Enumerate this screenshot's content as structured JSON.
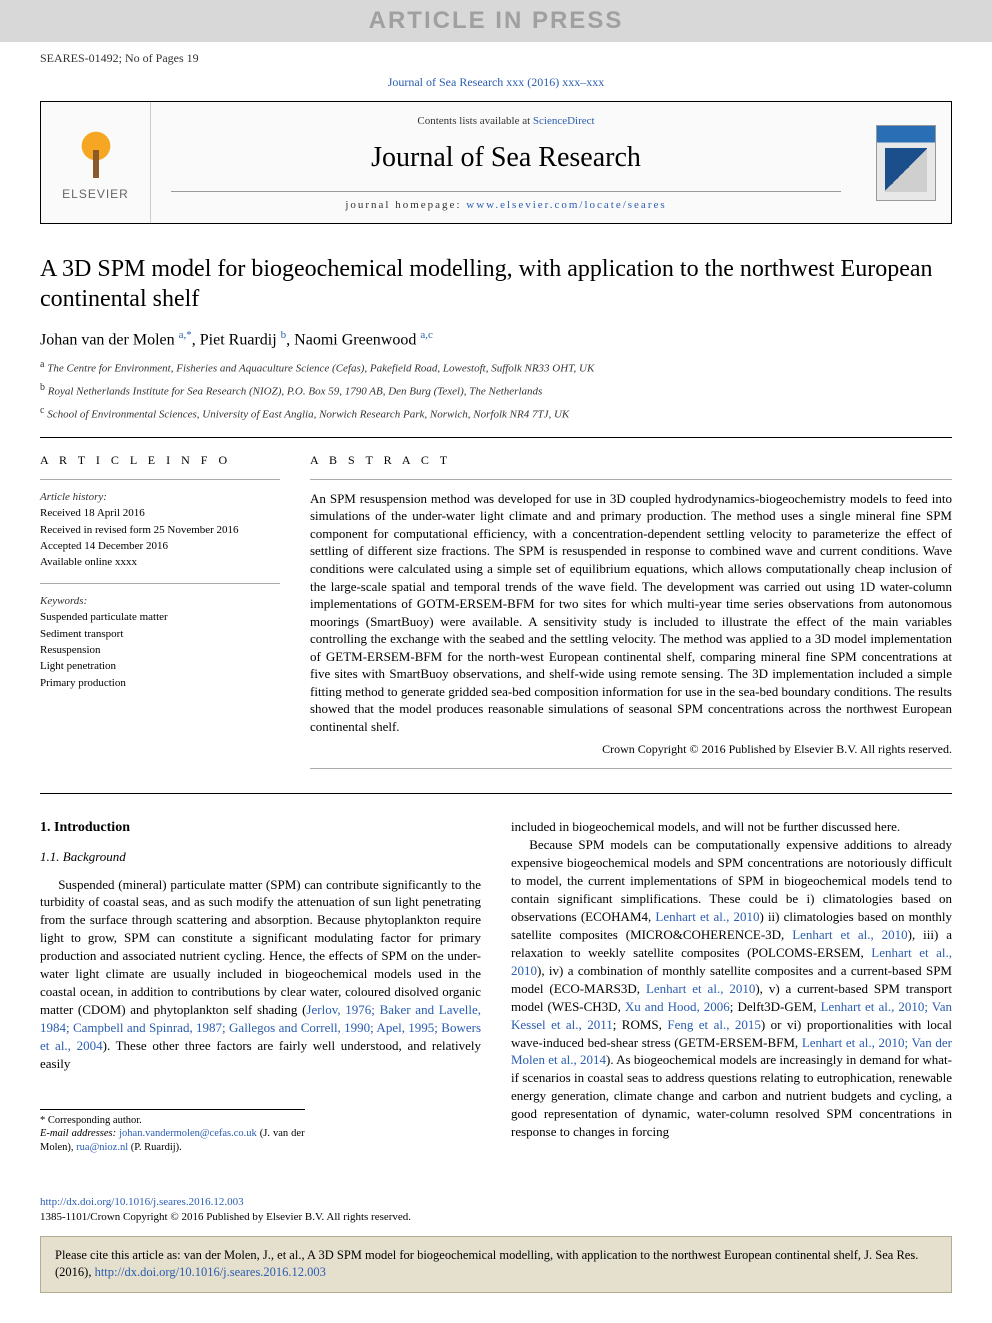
{
  "pressBanner": "ARTICLE IN PRESS",
  "articleRef": "SEARES-01492; No of Pages 19",
  "journalLine": "Journal of Sea Research xxx (2016) xxx–xxx",
  "headerBlock": {
    "elsevierBrand": "ELSEVIER",
    "contentsPrefix": "Contents lists available at ",
    "contentsLink": "ScienceDirect",
    "journalTitle": "Journal of Sea Research",
    "homepagePrefix": "journal homepage: ",
    "homepageUrl": "www.elsevier.com/locate/seares"
  },
  "title": "A 3D SPM model for biogeochemical modelling, with application to the northwest European continental shelf",
  "authors": [
    {
      "name": "Johan van der Molen ",
      "affil": "a,*"
    },
    {
      "name": ", Piet Ruardij ",
      "affil": "b"
    },
    {
      "name": ", Naomi Greenwood ",
      "affil": "a,c"
    }
  ],
  "affiliations": [
    {
      "sup": "a",
      "text": " The Centre for Environment, Fisheries and Aquaculture Science (Cefas), Pakefield Road, Lowestoft, Suffolk NR33 OHT, UK"
    },
    {
      "sup": "b",
      "text": " Royal Netherlands Institute for Sea Research (NIOZ), P.O. Box 59, 1790 AB, Den Burg (Texel), The Netherlands"
    },
    {
      "sup": "c",
      "text": " School of Environmental Sciences, University of East Anglia, Norwich Research Park, Norwich, Norfolk NR4 7TJ, UK"
    }
  ],
  "articleInfo": {
    "heading": "A R T I C L E   I N F O",
    "historyLabel": "Article history:",
    "history": [
      "Received 18 April 2016",
      "Received in revised form 25 November 2016",
      "Accepted 14 December 2016",
      "Available online xxxx"
    ],
    "keywordsLabel": "Keywords:",
    "keywords": [
      "Suspended particulate matter",
      "Sediment transport",
      "Resuspension",
      "Light penetration",
      "Primary production"
    ]
  },
  "abstract": {
    "heading": "A B S T R A C T",
    "text": "An SPM resuspension method was developed for use in 3D coupled hydrodynamics-biogeochemistry models to feed into simulations of the under-water light climate and and primary production. The method uses a single mineral fine SPM component for computational efficiency, with a concentration-dependent settling velocity to parameterize the effect of settling of different size fractions. The SPM is resuspended in response to combined wave and current conditions. Wave conditions were calculated using a simple set of equilibrium equations, which allows computationally cheap inclusion of the large-scale spatial and temporal trends of the wave field. The development was carried out using 1D water-column implementations of GOTM-ERSEM-BFM for two sites for which multi-year time series observations from autonomous moorings (SmartBuoy) were available. A sensitivity study is included to illustrate the effect of the main variables controlling the exchange with the seabed and the settling velocity. The method was applied to a 3D model implementation of GETM-ERSEM-BFM for the north-west European continental shelf, comparing mineral fine SPM concentrations at five sites with SmartBuoy observations, and shelf-wide using remote sensing. The 3D implementation included a simple fitting method to generate gridded sea-bed composition information for use in the sea-bed boundary conditions. The results showed that the model produces reasonable simulations of seasonal SPM concentrations across the northwest European continental shelf.",
    "copyright": "Crown Copyright © 2016 Published by Elsevier B.V. All rights reserved."
  },
  "section1": {
    "heading": "1. Introduction",
    "sub": "1.1. Background",
    "leftPara": {
      "leadText": "Suspended (mineral) particulate matter (SPM) can contribute significantly to the turbidity of coastal seas, and as such modify the attenuation of sun light penetrating from the surface through scattering and absorption. Because phytoplankton require light to grow, SPM can constitute a significant modulating factor for primary production and associated nutrient cycling. Hence, the effects of SPM on the under-water light climate are usually included in biogeochemical models used in the coastal ocean, in addition to contributions by clear water, coloured disolved organic matter (CDOM) and phytoplankton self shading (",
      "ref1": "Jerlov, 1976; Baker and Lavelle, 1984; Campbell and Spinrad, 1987; Gallegos and Correll, 1990; Apel, 1995; Bowers et al., 2004",
      "tailText": "). These other three factors are fairly well understood, and relatively easily"
    },
    "rightParaTop": "included in biogeochemical models, and will not be further discussed here.",
    "rightPara": {
      "p1": "Because SPM models can be computationally expensive additions to already expensive biogeochemical models and SPM concentrations are notoriously difficult to model, the current implementations of SPM in biogeochemical models tend to contain significant simplifications. These could be i) climatologies based on observations (ECOHAM4, ",
      "r1": "Lenhart et al., 2010",
      "p2": ") ii) climatologies based on monthly satellite composites (MICRO&COHERENCE-3D, ",
      "r2": "Lenhart et al., 2010",
      "p3": "), iii) a relaxation to weekly satellite composites (POLCOMS-ERSEM, ",
      "r3": "Lenhart et al., 2010",
      "p4": "), iv) a combination of monthly satellite composites and a current-based SPM model (ECO-MARS3D, ",
      "r4": "Lenhart et al., 2010",
      "p5": "), v) a current-based SPM transport model (WES-CH3D, ",
      "r5": "Xu and Hood, 2006",
      "p6": "; Delft3D-GEM, ",
      "r6": "Lenhart et al., 2010; Van Kessel et al., 2011",
      "p7": "; ROMS, ",
      "r7": "Feng et al., 2015",
      "p8": ") or vi) proportionalities with local wave-induced bed-shear stress (GETM-ERSEM-BFM, ",
      "r8": "Lenhart et al., 2010; Van der Molen et al., 2014",
      "p9": "). As biogeochemical models are increasingly in demand for what-if scenarios in coastal seas to address questions relating to eutrophication, renewable energy generation, climate change and carbon and nutrient budgets and cycling, a good representation of dynamic, water-column resolved SPM concentrations in response to changes in forcing"
    }
  },
  "footnotes": {
    "corresponding": "* Corresponding author.",
    "emailLabel": "E-mail addresses: ",
    "email1": "johan.vandermolen@cefas.co.uk",
    "email1Suffix": " (J. van der Molen), ",
    "email2": "rua@nioz.nl",
    "email2Suffix": " (P. Ruardij)."
  },
  "doi": {
    "url": "http://dx.doi.org/10.1016/j.seares.2016.12.003",
    "issn": "1385-1101/Crown Copyright © 2016 Published by Elsevier B.V. All rights reserved."
  },
  "citeBox": {
    "text": "Please cite this article as: van der Molen, J., et al., A 3D SPM model for biogeochemical modelling, with application to the northwest European continental shelf, J. Sea Res. (2016), ",
    "link": "http://dx.doi.org/10.1016/j.seares.2016.12.003"
  },
  "colors": {
    "link": "#2a5db0",
    "bannerBg": "#d8d8d8",
    "bannerText": "#a0a0a0",
    "citeBg": "#e5dfce",
    "citeBorder": "#b5ad93"
  }
}
